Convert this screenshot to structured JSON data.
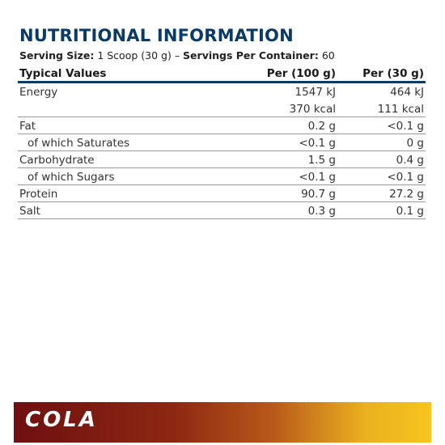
{
  "title": "NUTRITIONAL INFORMATION",
  "serving": {
    "size_label": "Serving Size:",
    "size_value": "1 Scoop (30 g)",
    "separator": "–",
    "per_container_label": "Servings Per Container:",
    "per_container_value": "60"
  },
  "table": {
    "headers": [
      "Typical Values",
      "Per (100 g)",
      "Per (30 g)"
    ],
    "rows": [
      {
        "label": "Energy",
        "per100": "1547 kJ",
        "per30": "464 kJ"
      },
      {
        "label": "",
        "per100": "370 kcal",
        "per30": "111 kcal"
      },
      {
        "label": "Fat",
        "per100": "0.2 g",
        "per30": "<0.1 g"
      },
      {
        "label": "of which Saturates",
        "per100": "<0.1 g",
        "per30": "0 g"
      },
      {
        "label": "Carbohydrate",
        "per100": "1.5 g",
        "per30": "0.4 g"
      },
      {
        "label": "of which Sugars",
        "per100": "<0.1 g",
        "per30": "<0.1 g"
      },
      {
        "label": "Protein",
        "per100": "90.7 g",
        "per30": "27.2 g"
      },
      {
        "label": "Salt",
        "per100": "0.3 g",
        "per30": "0.1 g"
      }
    ]
  },
  "banner": {
    "flavour": "COLA",
    "colors": [
      "#6f0f10",
      "#b8591a",
      "#f7c51e"
    ]
  }
}
